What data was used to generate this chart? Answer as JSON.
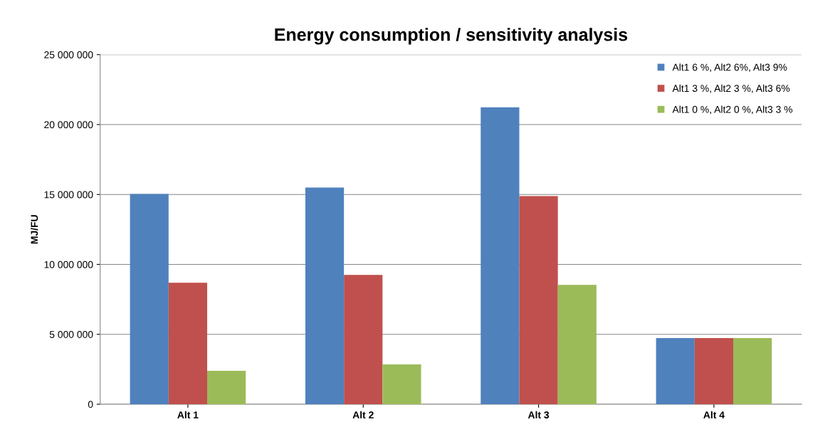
{
  "chart_data": {
    "type": "bar",
    "title": "Energy consumption / sensitivity analysis",
    "ylabel": "MJ/FU",
    "categories": [
      "Alt 1",
      "Alt 2",
      "Alt 3",
      "Alt 4"
    ],
    "series": [
      {
        "name": "Alt1 6 %, Alt2 6%, Alt3 9%",
        "color": "#4f81bd",
        "values": [
          15040000,
          15500000,
          21240000,
          4730000
        ]
      },
      {
        "name": "Alt1 3 %, Alt2 3 %, Alt3 6%",
        "color": "#c0504d",
        "values": [
          8690000,
          9250000,
          14890000,
          4730000
        ]
      },
      {
        "name": "Alt1 0 %, Alt2 0 %, Alt3 3 %",
        "color": "#9bbb59",
        "values": [
          2390000,
          2850000,
          8540000,
          4730000
        ]
      }
    ],
    "ylim": [
      0,
      25000000
    ],
    "yticks": [
      0,
      {
        "value": 5000000,
        "label": "5 000 000"
      },
      {
        "value": 10000000,
        "label": "10 000 000"
      },
      {
        "value": 15000000,
        "label": "15 000 000"
      },
      {
        "value": 20000000,
        "label": "20 000 000"
      },
      {
        "value": 25000000,
        "label": "25 000 000"
      }
    ],
    "grid": "y",
    "legend": "top right"
  }
}
